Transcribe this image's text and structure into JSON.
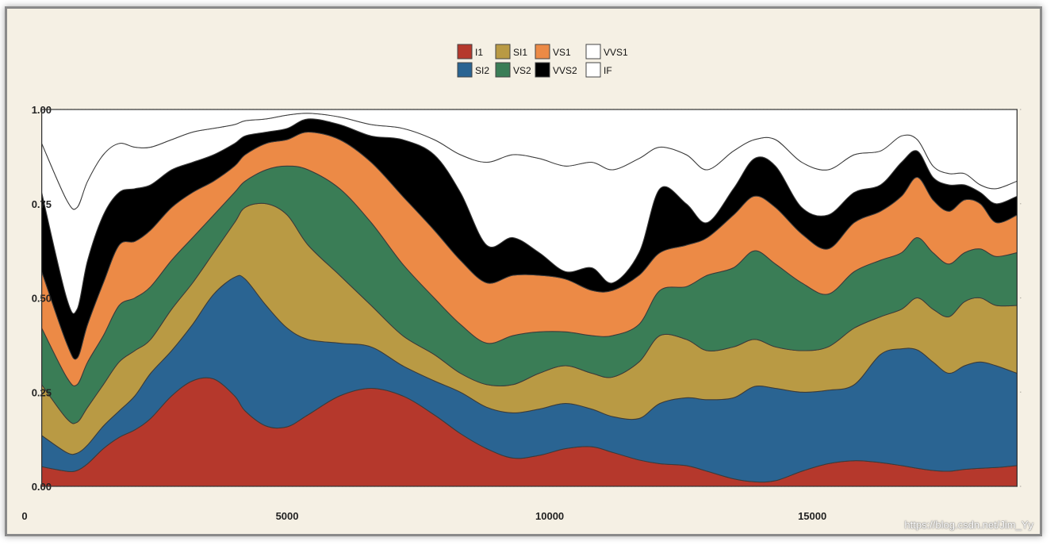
{
  "chart_data": {
    "type": "area",
    "stacked": true,
    "normalized": true,
    "title": "",
    "xlabel": "",
    "ylabel": "",
    "xlim": [
      0,
      19000
    ],
    "ylim": [
      0,
      1
    ],
    "x_ticks": [
      0,
      5000,
      10000,
      15000
    ],
    "x_tick_labels": [
      "0",
      "5000",
      "10000",
      "15000"
    ],
    "y_ticks": [
      0,
      0.25,
      0.5,
      0.75,
      1
    ],
    "y_tick_labels": [
      "0.00",
      "0.25",
      "0.50",
      "0.75",
      "1.00"
    ],
    "grid": "horizontal-dotted",
    "legend_position": "top-center",
    "x": [
      326,
      800,
      1000,
      1200,
      1500,
      1800,
      2100,
      2400,
      2800,
      3200,
      3600,
      4000,
      4200,
      4600,
      5000,
      5400,
      6000,
      6600,
      7200,
      7800,
      8300,
      8800,
      9300,
      9800,
      10300,
      10800,
      11200,
      11700,
      12100,
      12600,
      13000,
      13500,
      13900,
      14300,
      14800,
      15300,
      15800,
      16300,
      16700,
      17000,
      17300,
      17600,
      17900,
      18200,
      18500,
      18900
    ],
    "categories_order": [
      "I1",
      "SI2",
      "SI1",
      "VS2",
      "VS1",
      "VVS2",
      "VVS1",
      "IF"
    ],
    "series": [
      {
        "name": "I1",
        "color": "#b5382c",
        "cumulative": [
          0.052,
          0.04,
          0.042,
          0.06,
          0.1,
          0.13,
          0.15,
          0.18,
          0.24,
          0.28,
          0.285,
          0.24,
          0.2,
          0.16,
          0.158,
          0.19,
          0.24,
          0.26,
          0.24,
          0.19,
          0.14,
          0.1,
          0.075,
          0.082,
          0.1,
          0.105,
          0.09,
          0.07,
          0.06,
          0.055,
          0.04,
          0.02,
          0.012,
          0.015,
          0.04,
          0.06,
          0.068,
          0.063,
          0.055,
          0.048,
          0.042,
          0.04,
          0.045,
          0.048,
          0.05,
          0.055
        ]
      },
      {
        "name": "SI2",
        "color": "#2a6492",
        "cumulative": [
          0.135,
          0.09,
          0.088,
          0.11,
          0.16,
          0.2,
          0.24,
          0.3,
          0.36,
          0.43,
          0.51,
          0.555,
          0.55,
          0.48,
          0.42,
          0.39,
          0.38,
          0.37,
          0.32,
          0.28,
          0.25,
          0.21,
          0.195,
          0.205,
          0.22,
          0.205,
          0.185,
          0.18,
          0.22,
          0.235,
          0.23,
          0.235,
          0.265,
          0.26,
          0.25,
          0.255,
          0.27,
          0.35,
          0.365,
          0.362,
          0.33,
          0.3,
          0.32,
          0.33,
          0.32,
          0.3
        ]
      },
      {
        "name": "SI1",
        "color": "#b99a44",
        "cumulative": [
          0.27,
          0.18,
          0.17,
          0.21,
          0.27,
          0.33,
          0.36,
          0.39,
          0.47,
          0.54,
          0.62,
          0.7,
          0.74,
          0.75,
          0.72,
          0.64,
          0.56,
          0.48,
          0.4,
          0.35,
          0.3,
          0.27,
          0.27,
          0.3,
          0.32,
          0.3,
          0.29,
          0.33,
          0.4,
          0.39,
          0.36,
          0.37,
          0.39,
          0.37,
          0.36,
          0.37,
          0.42,
          0.45,
          0.47,
          0.5,
          0.47,
          0.45,
          0.49,
          0.5,
          0.48,
          0.48
        ]
      },
      {
        "name": "VS2",
        "color": "#3a7d56",
        "cumulative": [
          0.42,
          0.29,
          0.27,
          0.33,
          0.4,
          0.48,
          0.5,
          0.53,
          0.6,
          0.66,
          0.72,
          0.78,
          0.81,
          0.84,
          0.85,
          0.84,
          0.79,
          0.7,
          0.59,
          0.5,
          0.43,
          0.38,
          0.4,
          0.41,
          0.41,
          0.4,
          0.4,
          0.43,
          0.52,
          0.53,
          0.56,
          0.58,
          0.625,
          0.59,
          0.54,
          0.51,
          0.57,
          0.6,
          0.62,
          0.66,
          0.62,
          0.59,
          0.62,
          0.63,
          0.61,
          0.62
        ]
      },
      {
        "name": "VS1",
        "color": "#ec8a46",
        "cumulative": [
          0.57,
          0.38,
          0.34,
          0.43,
          0.54,
          0.64,
          0.65,
          0.68,
          0.74,
          0.78,
          0.81,
          0.85,
          0.88,
          0.91,
          0.92,
          0.94,
          0.92,
          0.86,
          0.77,
          0.68,
          0.6,
          0.54,
          0.56,
          0.56,
          0.55,
          0.52,
          0.52,
          0.56,
          0.62,
          0.64,
          0.66,
          0.72,
          0.77,
          0.74,
          0.67,
          0.63,
          0.7,
          0.73,
          0.77,
          0.82,
          0.76,
          0.73,
          0.76,
          0.75,
          0.7,
          0.72
        ]
      },
      {
        "name": "VVS2",
        "color": "#000000",
        "cumulative": [
          0.78,
          0.5,
          0.47,
          0.6,
          0.72,
          0.78,
          0.79,
          0.8,
          0.84,
          0.86,
          0.88,
          0.91,
          0.93,
          0.94,
          0.95,
          0.975,
          0.96,
          0.93,
          0.92,
          0.88,
          0.78,
          0.64,
          0.66,
          0.62,
          0.57,
          0.58,
          0.54,
          0.62,
          0.79,
          0.75,
          0.7,
          0.79,
          0.87,
          0.85,
          0.74,
          0.72,
          0.78,
          0.8,
          0.86,
          0.89,
          0.82,
          0.8,
          0.8,
          0.78,
          0.75,
          0.77
        ]
      },
      {
        "name": "VVS1",
        "color": "#ffffff",
        "cumulative": [
          0.91,
          0.76,
          0.74,
          0.81,
          0.88,
          0.91,
          0.9,
          0.9,
          0.92,
          0.94,
          0.95,
          0.96,
          0.97,
          0.975,
          0.985,
          0.99,
          0.98,
          0.96,
          0.95,
          0.92,
          0.88,
          0.86,
          0.88,
          0.87,
          0.85,
          0.86,
          0.84,
          0.87,
          0.9,
          0.88,
          0.84,
          0.89,
          0.92,
          0.92,
          0.86,
          0.84,
          0.88,
          0.89,
          0.93,
          0.92,
          0.85,
          0.83,
          0.83,
          0.8,
          0.79,
          0.81
        ]
      },
      {
        "name": "IF",
        "color": "#ffffff",
        "cumulative": [
          1,
          1,
          1,
          1,
          1,
          1,
          1,
          1,
          1,
          1,
          1,
          1,
          1,
          1,
          1,
          1,
          1,
          1,
          1,
          1,
          1,
          1,
          1,
          1,
          1,
          1,
          1,
          1,
          1,
          1,
          1,
          1,
          1,
          1,
          1,
          1,
          1,
          1,
          1,
          1,
          1,
          1,
          1,
          1,
          1,
          1
        ]
      }
    ],
    "legend": [
      {
        "name": "I1",
        "color": "#b5382c"
      },
      {
        "name": "SI2",
        "color": "#2a6492"
      },
      {
        "name": "SI1",
        "color": "#b99a44"
      },
      {
        "name": "VS2",
        "color": "#3a7d56"
      },
      {
        "name": "VS1",
        "color": "#ec8a46"
      },
      {
        "name": "VVS2",
        "color": "#000000"
      },
      {
        "name": "VVS1",
        "color": "#ffffff"
      },
      {
        "name": "IF",
        "color": "#ffffff"
      }
    ],
    "legend_rows": [
      [
        "I1",
        "SI1",
        "VS1",
        "VVS1"
      ],
      [
        "SI2",
        "VS2",
        "VVS2",
        "IF"
      ]
    ],
    "colors": {
      "background": "#f5f0e4",
      "frame": "#8a8a8a",
      "grid": "#b8b4aa",
      "outline": "#333333"
    }
  },
  "watermark": "https://blog.csdn.net/Jim_Yy"
}
